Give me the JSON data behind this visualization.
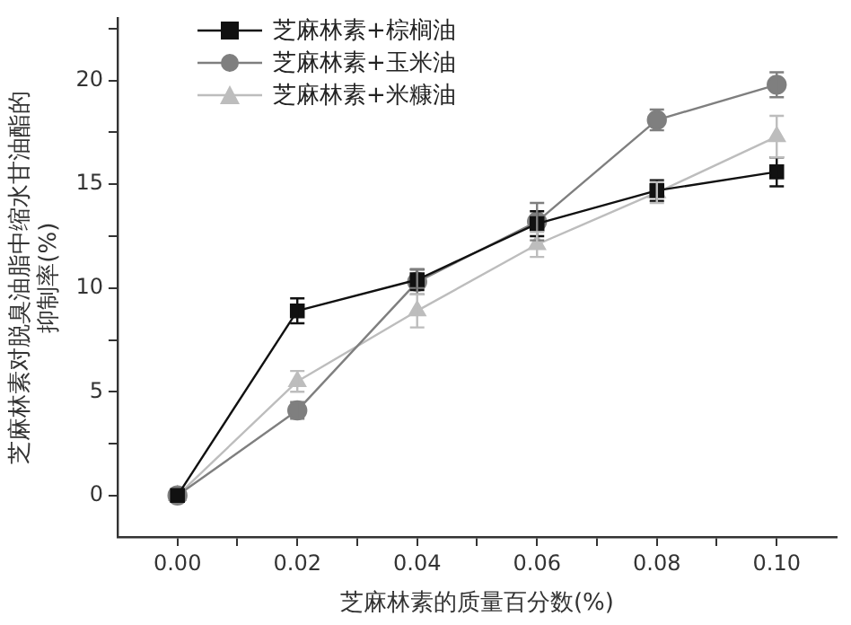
{
  "chart_data": {
    "type": "line",
    "xlabel": "芝麻林素的质量百分数(%)",
    "ylabel": "芝麻林素对脱臭油脂中缩水甘油酯的抑制率(%)",
    "x": [
      0,
      0.02,
      0.04,
      0.06,
      0.08,
      0.1
    ],
    "series": [
      {
        "name": "芝麻林素+棕榈油",
        "color": "#111111",
        "marker": "square",
        "values": [
          0,
          8.9,
          10.4,
          13.1,
          14.7,
          15.6
        ],
        "errors": [
          null,
          0.6,
          0.5,
          0.6,
          0.5,
          0.7
        ]
      },
      {
        "name": "芝麻林素+玉米油",
        "color": "#7f7f7f",
        "marker": "circle",
        "values": [
          0,
          4.1,
          10.3,
          13.2,
          18.1,
          19.8
        ],
        "errors": [
          null,
          0.4,
          0.6,
          0.9,
          0.5,
          0.6
        ]
      },
      {
        "name": "芝麻林素+米糠油",
        "color": "#bdbdbd",
        "marker": "triangle",
        "values": [
          0,
          5.5,
          8.9,
          12.1,
          14.6,
          17.3
        ],
        "errors": [
          null,
          0.5,
          0.8,
          0.6,
          0.5,
          1.0
        ]
      }
    ],
    "xlim": [
      -0.01,
      0.11
    ],
    "xticks": [
      {
        "value": 0,
        "label": "0.00"
      },
      {
        "value": 0.01,
        "label": null
      },
      {
        "value": 0.02,
        "label": "0.02"
      },
      {
        "value": 0.03,
        "label": null
      },
      {
        "value": 0.04,
        "label": "0.04"
      },
      {
        "value": 0.05,
        "label": null
      },
      {
        "value": 0.06,
        "label": "0.06"
      },
      {
        "value": 0.07,
        "label": null
      },
      {
        "value": 0.08,
        "label": "0.08"
      },
      {
        "value": 0.09,
        "label": null
      },
      {
        "value": 0.1,
        "label": "0.10"
      }
    ],
    "ylim": [
      -2,
      23
    ],
    "yticks": [
      0,
      {
        "value": 2.5,
        "label": null
      },
      5,
      {
        "value": 7.5,
        "label": null
      },
      10,
      {
        "value": 12.5,
        "label": null
      },
      15,
      {
        "value": 17.5,
        "label": null
      },
      20,
      {
        "value": 22.5,
        "label": null
      }
    ],
    "grid": false,
    "legend": "top left"
  }
}
